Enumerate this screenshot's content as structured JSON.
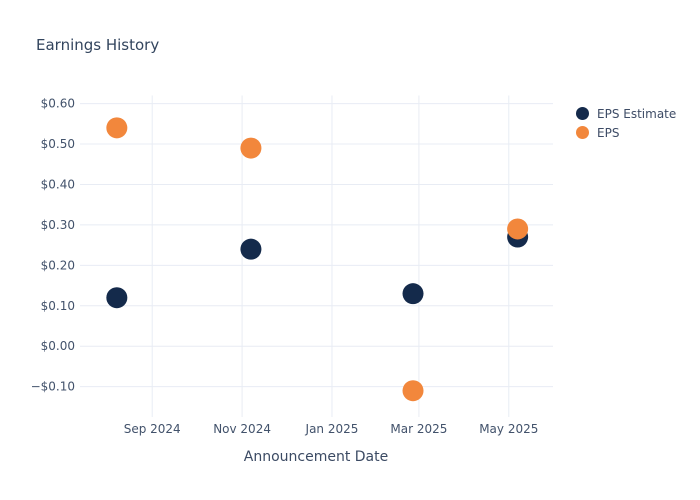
{
  "chart_data": {
    "type": "scatter",
    "title": "Earnings History",
    "xlabel": "Announcement Date",
    "ylabel": "",
    "grid": true,
    "legend_position": "right",
    "x_range": [
      "2024-07-14",
      "2025-05-31"
    ],
    "y_range": [
      -0.175,
      0.62
    ],
    "x_ticks": [
      {
        "label": "Sep 2024",
        "date": "2024-09-01"
      },
      {
        "label": "Nov 2024",
        "date": "2024-11-01"
      },
      {
        "label": "Jan 2025",
        "date": "2025-01-01"
      },
      {
        "label": "Mar 2025",
        "date": "2025-03-01"
      },
      {
        "label": "May 2025",
        "date": "2025-05-01"
      }
    ],
    "y_ticks": [
      {
        "label": "$0.60",
        "value": 0.6
      },
      {
        "label": "$0.50",
        "value": 0.5
      },
      {
        "label": "$0.40",
        "value": 0.4
      },
      {
        "label": "$0.30",
        "value": 0.3
      },
      {
        "label": "$0.20",
        "value": 0.2
      },
      {
        "label": "$0.10",
        "value": 0.1
      },
      {
        "label": "$0.00",
        "value": 0.0
      },
      {
        "label": "−$0.10",
        "value": -0.1
      }
    ],
    "series": [
      {
        "name": "EPS Estimate",
        "color": "#142a4b",
        "points": [
          {
            "date": "2024-08-08",
            "value": 0.12
          },
          {
            "date": "2024-11-07",
            "value": 0.24
          },
          {
            "date": "2025-02-25",
            "value": 0.13
          },
          {
            "date": "2025-05-07",
            "value": 0.27
          }
        ]
      },
      {
        "name": "EPS",
        "color": "#f2873c",
        "points": [
          {
            "date": "2024-08-08",
            "value": 0.54
          },
          {
            "date": "2024-11-07",
            "value": 0.49
          },
          {
            "date": "2025-02-25",
            "value": -0.11
          },
          {
            "date": "2025-05-07",
            "value": 0.29
          }
        ]
      }
    ]
  },
  "styles": {
    "grid_color": "#e8ecf4",
    "tick_color": "#42526b",
    "axis_title_color": "#3b4a63",
    "title_color": "#33455e",
    "background": "#ffffff"
  }
}
